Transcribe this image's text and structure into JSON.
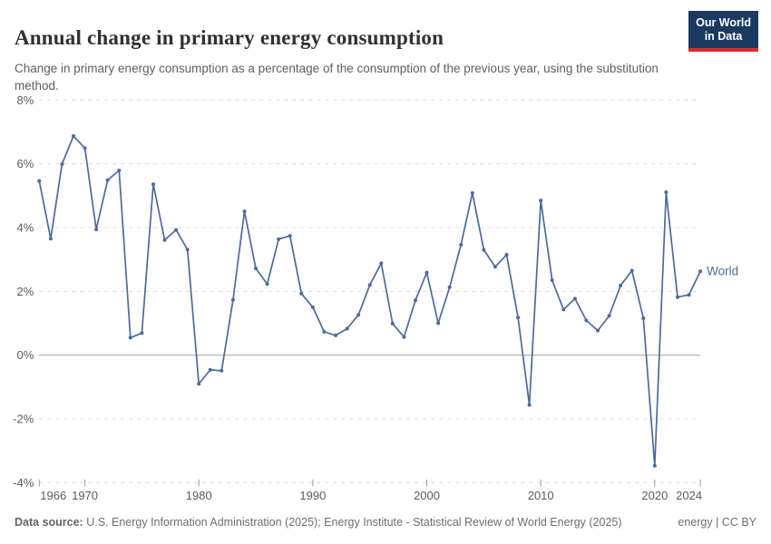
{
  "header": {
    "title": "Annual change in primary energy consumption",
    "subtitle": "Change in primary energy consumption as a percentage of the consumption of the previous year, using the substitution method.",
    "logo": {
      "line1": "Our World",
      "line2": "in Data"
    }
  },
  "footer": {
    "source_label": "Data source:",
    "source_text": " U.S. Energy Information Administration (2025); Energy Institute - Statistical Review of World Energy (2025)",
    "license": "energy | CC BY"
  },
  "chart_data": {
    "type": "line",
    "title": "Annual change in primary energy consumption",
    "xlabel": "",
    "ylabel": "",
    "ytick_suffix": "%",
    "xlim": [
      1966,
      2024
    ],
    "ylim": [
      -4,
      8
    ],
    "yticks": [
      8,
      6,
      4,
      2,
      0,
      -2,
      -4
    ],
    "xticks": [
      1966,
      1970,
      1980,
      1990,
      2000,
      2010,
      2020,
      2024
    ],
    "grid": true,
    "legend_position": "end-of-line-label",
    "line_color": "#4C6A9C",
    "grid_color": "#dcdcdc",
    "zero_line_color": "#a0a0a0",
    "tick_label_color": "#5b5b5b",
    "series": [
      {
        "name": "World",
        "x": [
          1966,
          1967,
          1968,
          1969,
          1970,
          1971,
          1972,
          1973,
          1974,
          1975,
          1976,
          1977,
          1978,
          1979,
          1980,
          1981,
          1982,
          1983,
          1984,
          1985,
          1986,
          1987,
          1988,
          1989,
          1990,
          1991,
          1992,
          1993,
          1994,
          1995,
          1996,
          1997,
          1998,
          1999,
          2000,
          2001,
          2002,
          2003,
          2004,
          2005,
          2006,
          2007,
          2008,
          2009,
          2010,
          2011,
          2012,
          2013,
          2014,
          2015,
          2016,
          2017,
          2018,
          2019,
          2020,
          2021,
          2022,
          2023,
          2024
        ],
        "values": [
          5.46,
          3.65,
          5.99,
          6.87,
          6.49,
          3.94,
          5.49,
          5.79,
          0.55,
          0.69,
          5.36,
          3.61,
          3.93,
          3.31,
          -0.9,
          -0.46,
          -0.49,
          1.73,
          4.51,
          2.72,
          2.23,
          3.64,
          3.74,
          1.93,
          1.5,
          0.73,
          0.62,
          0.83,
          1.26,
          2.2,
          2.88,
          0.99,
          0.57,
          1.72,
          2.59,
          1.0,
          2.13,
          3.46,
          5.08,
          3.3,
          2.77,
          3.15,
          1.18,
          -1.56,
          4.85,
          2.35,
          1.43,
          1.77,
          1.09,
          0.77,
          1.23,
          2.18,
          2.65,
          1.16,
          -3.47,
          5.11,
          1.82,
          1.89,
          2.63
        ]
      }
    ]
  }
}
